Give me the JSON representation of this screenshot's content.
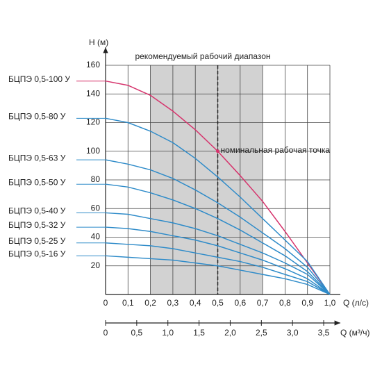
{
  "chart_data": {
    "type": "line",
    "y_label": "H (м)",
    "x_label": "Q (л/с)",
    "x2_label": "Q (м³/ч)",
    "annotation": "рекомендуемый рабочий диапазон",
    "recommended_range": [
      0.2,
      0.7
    ],
    "nominal_point": {
      "x": 0.5,
      "y": 100,
      "label": "номинальная рабочая точка"
    },
    "x": [
      0,
      0.1,
      0.2,
      0.3,
      0.4,
      0.5,
      0.6,
      0.7,
      0.8,
      0.9,
      1.0
    ],
    "xlim": [
      0,
      1.0
    ],
    "ylim": [
      0,
      160
    ],
    "xticks": [
      0,
      {
        "value": 0.1,
        "label": "0,1"
      },
      {
        "value": 0.2,
        "label": "0,2"
      },
      {
        "value": 0.3,
        "label": "0,3"
      },
      {
        "value": 0.4,
        "label": "0,4"
      },
      {
        "value": 0.5,
        "label": "0,5"
      },
      {
        "value": 0.6,
        "label": "0,6"
      },
      {
        "value": 0.7,
        "label": "0,7"
      },
      {
        "value": 0.8,
        "label": "0,8"
      },
      {
        "value": 0.9,
        "label": "0,9"
      },
      {
        "value": 1.0,
        "label": "1,0"
      }
    ],
    "yticks": [
      20,
      40,
      60,
      80,
      100,
      120,
      140,
      160
    ],
    "x2lim": [
      0,
      3.6
    ],
    "x2ticks": [
      0,
      {
        "value": 0.5,
        "label": "0,5"
      },
      {
        "value": 1.0,
        "label": "1,0"
      },
      {
        "value": 1.5,
        "label": "1,5"
      },
      {
        "value": 2.0,
        "label": "2,0"
      },
      {
        "value": 2.5,
        "label": "2,5"
      },
      {
        "value": 3.0,
        "label": "3,0"
      },
      {
        "value": 3.5,
        "label": "3,5"
      }
    ],
    "grid": true,
    "series": [
      {
        "name": "БЦПЭ 0,5-100 У",
        "color": "#d6336c",
        "values": [
          149,
          146,
          139,
          128,
          115,
          100,
          83,
          65,
          44,
          22,
          0
        ]
      },
      {
        "name": "БЦПЭ 0,5-80 У",
        "color": "#2e8bc9",
        "values": [
          123,
          120,
          114,
          106,
          95,
          82,
          68,
          53,
          38,
          23,
          0
        ]
      },
      {
        "name": "БЦПЭ 0,5-63 У",
        "color": "#2e8bc9",
        "values": [
          94,
          91,
          87,
          81,
          73,
          64,
          54,
          43,
          32,
          19,
          0
        ]
      },
      {
        "name": "БЦПЭ 0,5-50 У",
        "color": "#2e8bc9",
        "values": [
          77,
          75,
          71,
          66,
          60,
          53,
          45,
          36,
          27,
          16,
          0
        ]
      },
      {
        "name": "БЦПЭ 0,5-40 У",
        "color": "#2e8bc9",
        "values": [
          57,
          56,
          53,
          50,
          46,
          41,
          35,
          29,
          22,
          14,
          0
        ]
      },
      {
        "name": "БЦПЭ 0,5-32 У",
        "color": "#2e8bc9",
        "values": [
          47,
          46,
          44,
          41,
          38,
          34,
          29,
          24,
          18,
          11,
          0
        ]
      },
      {
        "name": "БЦПЭ 0,5-25 У",
        "color": "#2e8bc9",
        "values": [
          36,
          35,
          34,
          32,
          29,
          26,
          23,
          19,
          14,
          9,
          0
        ]
      },
      {
        "name": "БЦПЭ 0,5-16 У",
        "color": "#2e8bc9",
        "values": [
          27,
          26,
          25,
          24,
          22,
          20,
          17,
          14,
          11,
          7,
          0
        ]
      }
    ]
  }
}
